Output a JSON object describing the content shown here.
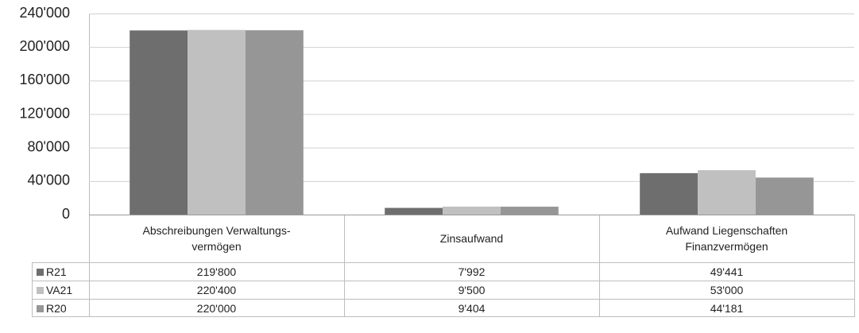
{
  "chart_data": {
    "type": "bar",
    "categories": [
      "Abschreibungen Verwaltungs-\nvermögen",
      "Zinsaufwand",
      "Aufwand Liegenschaften\nFinanzvermögen"
    ],
    "series": [
      {
        "name": "R21",
        "color": "#6e6e6e",
        "values": [
          219800,
          7992,
          49441
        ],
        "value_labels": [
          "219'800",
          "7'992",
          "49'441"
        ]
      },
      {
        "name": "VA21",
        "color": "#c0c0c0",
        "values": [
          220400,
          9500,
          53000
        ],
        "value_labels": [
          "220'400",
          "9'500",
          "53'000"
        ]
      },
      {
        "name": "R20",
        "color": "#969696",
        "values": [
          220000,
          9404,
          44181
        ],
        "value_labels": [
          "220'000",
          "9'404",
          "44'181"
        ]
      }
    ],
    "ylim": [
      0,
      240000
    ],
    "yticks": [
      0,
      {
        "value": 40000,
        "label": "40'000"
      },
      {
        "value": 80000,
        "label": "80'000"
      },
      {
        "value": 120000,
        "label": "120'000"
      },
      {
        "value": 160000,
        "label": "160'000"
      },
      {
        "value": 200000,
        "label": "200'000"
      },
      {
        "value": 240000,
        "label": "240'000"
      }
    ],
    "grid": true
  }
}
